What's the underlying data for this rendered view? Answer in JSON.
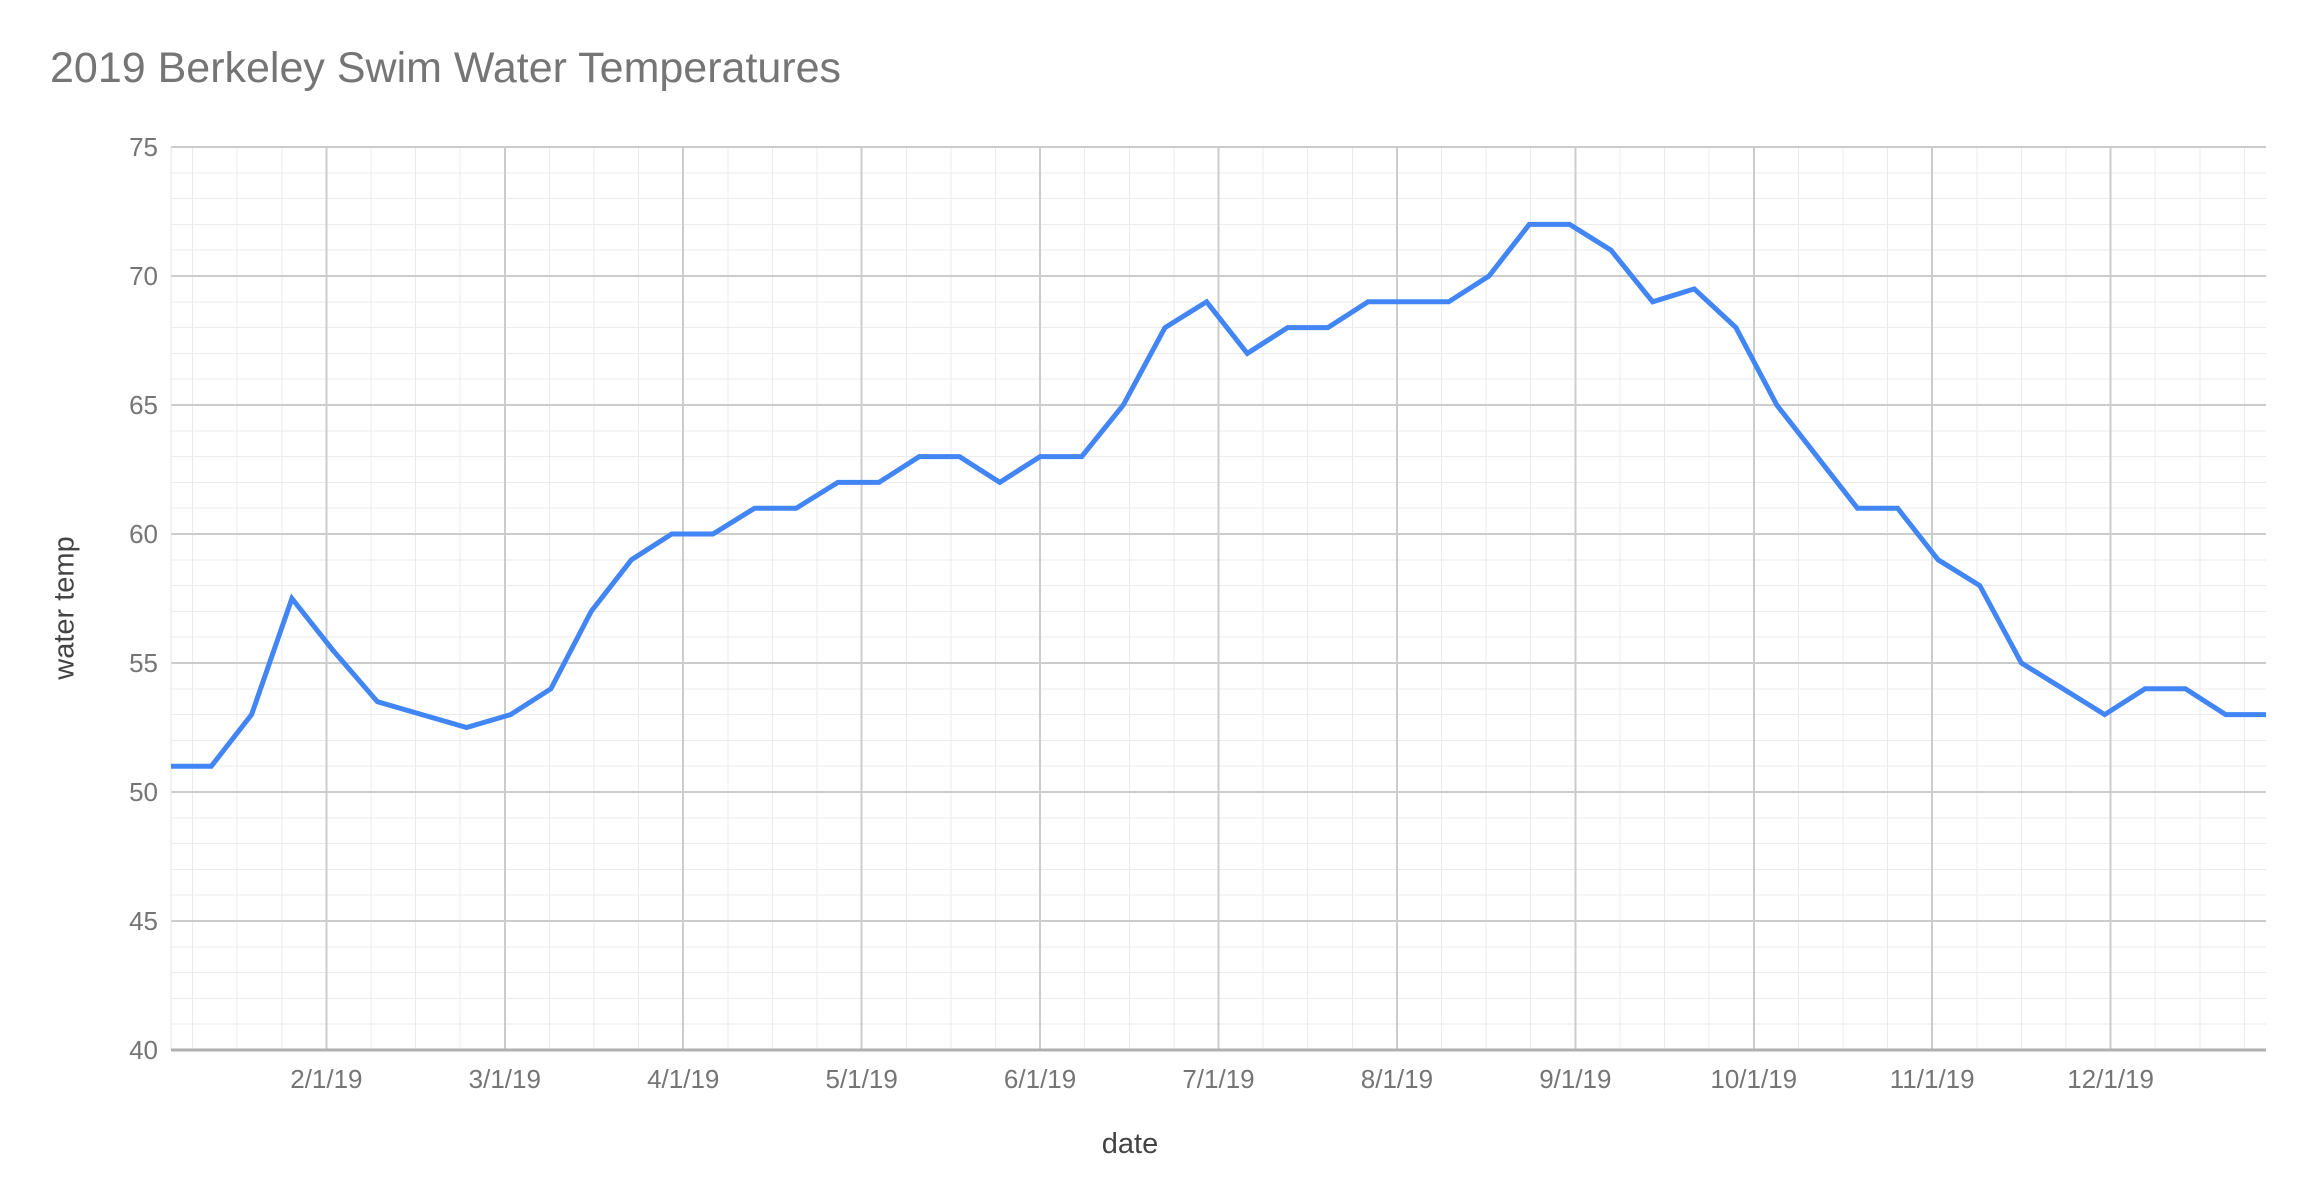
{
  "page": {
    "background": "#ffffff"
  },
  "chart_data": {
    "type": "line",
    "title": "2019 Berkeley Swim Water Temperatures",
    "xlabel": "date",
    "ylabel": "water temp",
    "x": [
      "1/5/19",
      "1/12/19",
      "1/19/19",
      "1/26/19",
      "2/2/19",
      "2/9/19",
      "2/16/19",
      "2/23/19",
      "3/2/19",
      "3/9/19",
      "3/16/19",
      "3/23/19",
      "3/30/19",
      "4/6/19",
      "4/13/19",
      "4/20/19",
      "4/27/19",
      "5/4/19",
      "5/11/19",
      "5/18/19",
      "5/25/19",
      "6/1/19",
      "6/8/19",
      "6/15/19",
      "6/22/19",
      "6/29/19",
      "7/6/19",
      "7/13/19",
      "7/20/19",
      "7/27/19",
      "8/3/19",
      "8/10/19",
      "8/17/19",
      "8/24/19",
      "8/31/19",
      "9/7/19",
      "9/14/19",
      "9/21/19",
      "9/28/19",
      "10/5/19",
      "10/12/19",
      "10/19/19",
      "10/26/19",
      "11/2/19",
      "11/9/19",
      "11/16/19",
      "11/23/19",
      "11/30/19",
      "12/7/19",
      "12/14/19",
      "12/21/19",
      "12/28/19"
    ],
    "values": [
      51,
      51,
      53,
      57.5,
      55.5,
      53.5,
      53,
      52.5,
      53,
      54,
      57,
      59,
      60,
      60,
      61,
      61,
      62,
      62,
      63,
      63,
      62,
      63,
      63,
      65,
      68,
      69,
      67,
      68,
      68,
      69,
      69,
      69,
      70,
      72,
      72,
      71,
      69,
      69.5,
      68,
      65,
      63,
      61,
      61,
      59,
      58,
      55,
      54,
      53,
      54,
      54,
      53,
      53
    ],
    "x_tick_labels": [
      "2/1/19",
      "3/1/19",
      "4/1/19",
      "5/1/19",
      "6/1/19",
      "7/1/19",
      "8/1/19",
      "9/1/19",
      "10/1/19",
      "11/1/19",
      "12/1/19"
    ],
    "y_ticks": [
      40,
      45,
      50,
      55,
      60,
      65,
      70,
      75
    ],
    "ylim": [
      40,
      75
    ],
    "grid": "major and minor, on",
    "legend_position": "none",
    "series_name": "water temp",
    "line_color": "#4285f4",
    "major_grid_color": "#cccccc",
    "minor_grid_color": "#ebebeb",
    "baseline_color": "#b0b0b0",
    "tick_label_color": "#757575",
    "axis_title_color": "#434343",
    "title_color": "#757575"
  }
}
